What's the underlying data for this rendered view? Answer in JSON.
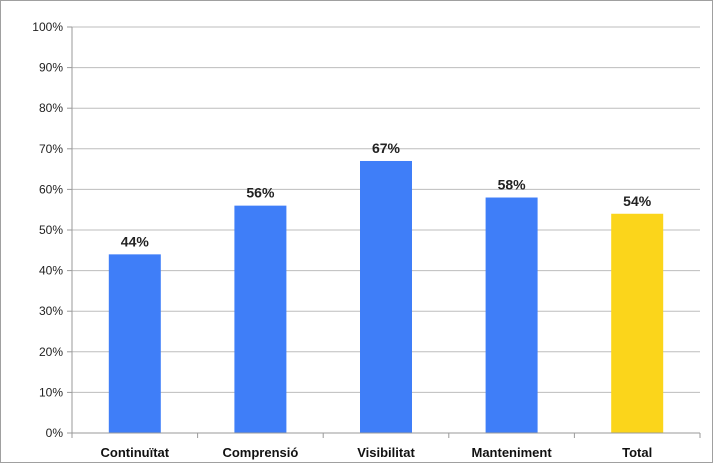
{
  "chart_data": {
    "type": "bar",
    "title": "",
    "xlabel": "",
    "ylabel": "",
    "categories": [
      "Continuïtat",
      "Comprensió",
      "Visibilitat",
      "Manteniment",
      "Total"
    ],
    "values": [
      44,
      56,
      67,
      58,
      54
    ],
    "data_labels": [
      "44%",
      "56%",
      "67%",
      "58%",
      "54%"
    ],
    "bar_colors": [
      "#3f7ef8",
      "#3f7ef8",
      "#3f7ef8",
      "#3f7ef8",
      "#fbd51b"
    ],
    "ylim": [
      0,
      100
    ],
    "yticks": [
      0,
      10,
      20,
      30,
      40,
      50,
      60,
      70,
      80,
      90,
      100
    ],
    "ytick_labels": [
      "0%",
      "10%",
      "20%",
      "30%",
      "40%",
      "50%",
      "60%",
      "70%",
      "80%",
      "90%",
      "100%"
    ],
    "grid": true,
    "legend": "none"
  },
  "colors": {
    "grid": "#bdbdbd",
    "axis": "#9a9a9a",
    "frame": "#a0a0a0"
  }
}
